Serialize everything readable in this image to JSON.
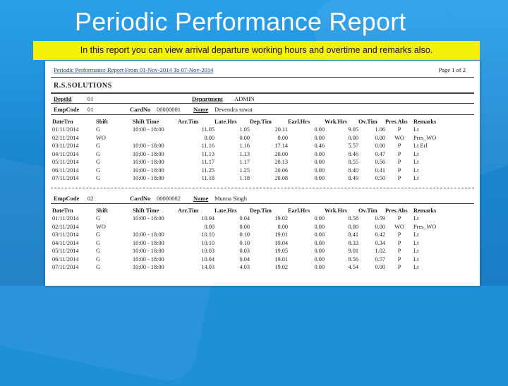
{
  "slide": {
    "title": "Periodic Performance Report",
    "subtitle": "In this report you can view arrival departure working hours and overtime and remarks also."
  },
  "report": {
    "header_title": "Periodic Performance Report From 01-Nov-2014 To 07-Nov-2014",
    "page": "Page 1 of 2",
    "company": "R.S.SOLUTIONS",
    "deptid_label": "DeptId",
    "deptid_value": "01",
    "department_label": "Department",
    "department_value": "ADMIN",
    "columns": [
      "DateTrn",
      "Shift",
      "Shift Time",
      "Arr.Tim",
      "Late.Hrs",
      "Dep.Tim",
      "Earl.Hrs",
      "Wrk.Hrs",
      "Ov.Tim",
      "Pres.Abs",
      "Remarks"
    ],
    "employees": [
      {
        "empcode_label": "EmpCode",
        "empcode": "01",
        "cardno_label": "CardNo",
        "cardno": "00000001",
        "name_label": "Name",
        "name": "Devendra rawat",
        "rows": [
          [
            "01/11/2014",
            "G",
            "10:00 - 18:00",
            "11.05",
            "1.05",
            "20.11",
            "0.00",
            "9.05",
            "1.06",
            "P",
            "Lt"
          ],
          [
            "02/11/2014",
            "WO",
            "",
            "0.00",
            "0.00",
            "0.00",
            "0.00",
            "0.00",
            "0.00",
            "WO",
            "Pres_WO"
          ],
          [
            "03/11/2014",
            "G",
            "10:00 - 18:00",
            "11.16",
            "1.16",
            "17.14",
            "0.46",
            "5.57",
            "0.00",
            "P",
            "Lt Erl"
          ],
          [
            "04/11/2014",
            "G",
            "10:00 - 18:00",
            "11.13",
            "1.13",
            "20.00",
            "0.00",
            "8.46",
            "0.47",
            "P",
            "Lt"
          ],
          [
            "05/11/2014",
            "G",
            "10:00 - 18:00",
            "11.17",
            "1.17",
            "20.13",
            "0.00",
            "8.55",
            "0.56",
            "P",
            "Lt"
          ],
          [
            "06/11/2014",
            "G",
            "10:00 - 18:00",
            "11.25",
            "1.25",
            "20.06",
            "0.00",
            "8.40",
            "0.41",
            "P",
            "Lt"
          ],
          [
            "07/11/2014",
            "G",
            "10:00 - 18:00",
            "11.18",
            "1.18",
            "20.08",
            "0.00",
            "8.49",
            "0.50",
            "P",
            "Lt"
          ]
        ]
      },
      {
        "empcode_label": "EmpCode",
        "empcode": "02",
        "cardno_label": "CardNo",
        "cardno": "00000002",
        "name_label": "Name",
        "name": "Munna Singh",
        "rows": [
          [
            "01/11/2014",
            "G",
            "10:00 - 18:00",
            "10.04",
            "0.04",
            "19.02",
            "0.00",
            "8.58",
            "0.59",
            "P",
            "Lt"
          ],
          [
            "02/11/2014",
            "WO",
            "",
            "0.00",
            "0.00",
            "0.00",
            "0.00",
            "0.00",
            "0.00",
            "WO",
            "Pres_WO"
          ],
          [
            "03/11/2014",
            "G",
            "10:00 - 18:00",
            "10.10",
            "0.10",
            "19.01",
            "0.00",
            "8.41",
            "0.42",
            "P",
            "Lt"
          ],
          [
            "04/11/2014",
            "G",
            "10:00 - 18:00",
            "10.10",
            "0.10",
            "19.04",
            "0.00",
            "8.33",
            "0.34",
            "P",
            "Lt"
          ],
          [
            "05/11/2014",
            "G",
            "10:00 - 18:00",
            "10.03",
            "0.03",
            "19.05",
            "0.00",
            "9.01",
            "1.02",
            "P",
            "Lt"
          ],
          [
            "06/11/2014",
            "G",
            "10:00 - 18:00",
            "10.04",
            "0.04",
            "19.01",
            "0.00",
            "8.56",
            "0.57",
            "P",
            "Lt"
          ],
          [
            "07/11/2014",
            "G",
            "10:00 - 18:00",
            "14.03",
            "4.03",
            "19.02",
            "0.00",
            "4.54",
            "0.00",
            "P",
            "Lt"
          ]
        ]
      }
    ]
  },
  "colors": {
    "background": "#1f8fd8",
    "highlight": "#f6f10a",
    "title": "#ffffff",
    "report_link": "#1e3a8a"
  }
}
